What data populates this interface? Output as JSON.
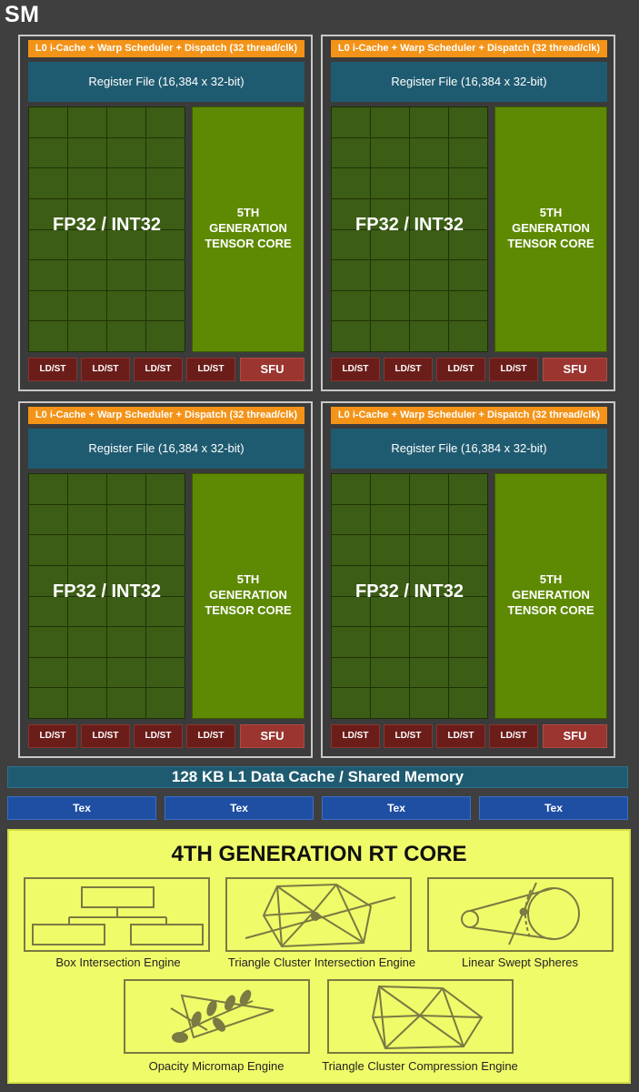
{
  "sm": {
    "title": "SM"
  },
  "quadrants": [
    {
      "header": "L0 i-Cache + Warp Scheduler + Dispatch (32 thread/clk)",
      "register_file": "Register File (16,384 x 32-bit)",
      "fp_label": "FP32 / INT32",
      "tensor_lines": [
        "5TH",
        "GENERATION",
        "TENSOR CORE"
      ],
      "ldst": [
        "LD/ST",
        "LD/ST",
        "LD/ST",
        "LD/ST"
      ],
      "sfu": "SFU"
    },
    {
      "header": "L0 i-Cache + Warp Scheduler + Dispatch (32 thread/clk)",
      "register_file": "Register File (16,384 x 32-bit)",
      "fp_label": "FP32 / INT32",
      "tensor_lines": [
        "5TH",
        "GENERATION",
        "TENSOR CORE"
      ],
      "ldst": [
        "LD/ST",
        "LD/ST",
        "LD/ST",
        "LD/ST"
      ],
      "sfu": "SFU"
    },
    {
      "header": "L0 i-Cache + Warp Scheduler + Dispatch (32 thread/clk)",
      "register_file": "Register File (16,384 x 32-bit)",
      "fp_label": "FP32 / INT32",
      "tensor_lines": [
        "5TH",
        "GENERATION",
        "TENSOR CORE"
      ],
      "ldst": [
        "LD/ST",
        "LD/ST",
        "LD/ST",
        "LD/ST"
      ],
      "sfu": "SFU"
    },
    {
      "header": "L0 i-Cache + Warp Scheduler + Dispatch (32 thread/clk)",
      "register_file": "Register File (16,384 x 32-bit)",
      "fp_label": "FP32 / INT32",
      "tensor_lines": [
        "5TH",
        "GENERATION",
        "TENSOR CORE"
      ],
      "ldst": [
        "LD/ST",
        "LD/ST",
        "LD/ST",
        "LD/ST"
      ],
      "sfu": "SFU"
    }
  ],
  "l1_cache": "128 KB L1 Data Cache / Shared Memory",
  "tex_units": [
    "Tex",
    "Tex",
    "Tex",
    "Tex"
  ],
  "rt_core": {
    "title": "4TH GENERATION RT CORE",
    "engines": [
      {
        "label": "Box Intersection Engine",
        "icon": "box-hierarchy-icon"
      },
      {
        "label": "Triangle Cluster Intersection Engine",
        "icon": "triangle-cluster-ray-icon"
      },
      {
        "label": "Linear Swept Spheres",
        "icon": "swept-sphere-icon"
      },
      {
        "label": "Opacity Micromap Engine",
        "icon": "leaf-triangle-icon"
      },
      {
        "label": "Triangle Cluster Compression Engine",
        "icon": "triangle-cluster-icon"
      }
    ]
  },
  "colors": {
    "background": "#3f3f3f",
    "scheduler": "#f39318",
    "register_file": "#1f5b70",
    "fp32_int32": "#3c5d15",
    "tensor_core": "#5e8a03",
    "ldst": "#6b1d1a",
    "sfu": "#9b3530",
    "tex": "#1e4fa3",
    "rt_core": "#f0fb69"
  }
}
